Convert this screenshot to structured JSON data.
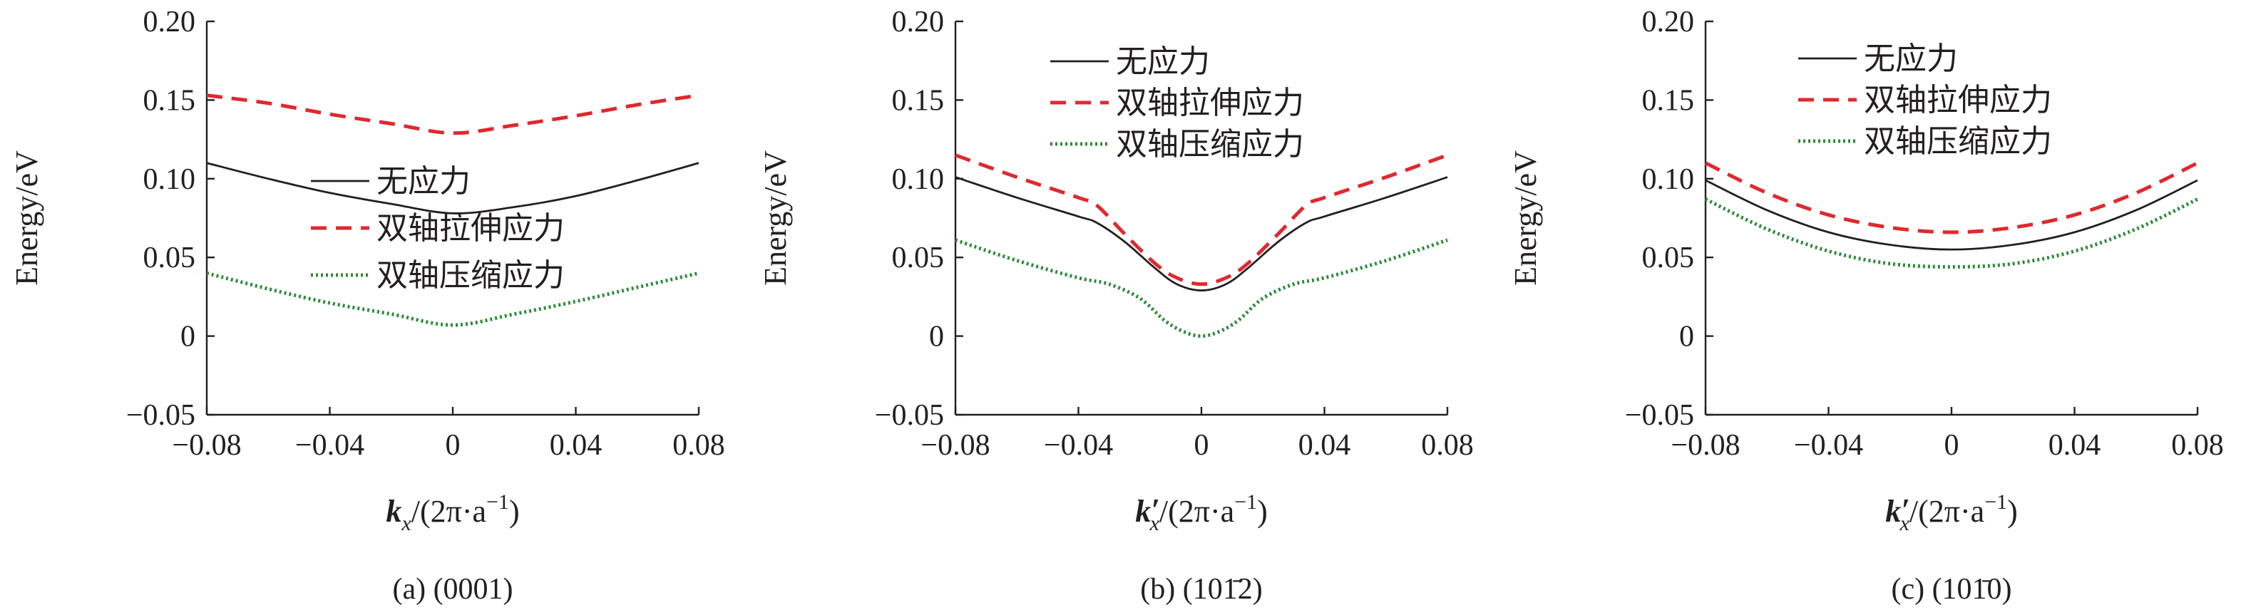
{
  "chart_data": [
    {
      "type": "line",
      "caption": "(a) (0001)",
      "xlabel": {
        "symbol": "k",
        "sub": "x",
        "prime": "",
        "rest": "/(2π·a",
        "sup": "−1",
        "close": ")"
      },
      "ylabel": "Energy/eV",
      "xlim": [
        -0.08,
        0.08
      ],
      "ylim": [
        -0.05,
        0.2
      ],
      "xticks": [
        -0.08,
        -0.04,
        0,
        0.04,
        0.08
      ],
      "xtick_labels": [
        "−0.08",
        "−0.04",
        "0",
        "0.04",
        "0.08"
      ],
      "yticks": [
        -0.05,
        0,
        0.05,
        0.1,
        0.15,
        0.2
      ],
      "ytick_labels": [
        "−0.05",
        "0",
        "0.05",
        "0.10",
        "0.15",
        "0.20"
      ],
      "legend_position": "center",
      "series": [
        {
          "name": "无应力",
          "style": "solid",
          "color": "#231f20",
          "x": [
            -0.08,
            -0.06,
            -0.04,
            -0.02,
            0,
            0.02,
            0.04,
            0.06,
            0.08
          ],
          "y": [
            0.11,
            0.1,
            0.091,
            0.084,
            0.078,
            0.082,
            0.089,
            0.099,
            0.11
          ]
        },
        {
          "name": "双轴拉伸应力",
          "style": "dashed",
          "color": "#e0282e",
          "x": [
            -0.08,
            -0.06,
            -0.04,
            -0.02,
            0,
            0.02,
            0.04,
            0.06,
            0.08
          ],
          "y": [
            0.153,
            0.148,
            0.141,
            0.135,
            0.129,
            0.134,
            0.14,
            0.147,
            0.153
          ]
        },
        {
          "name": "双轴压缩应力",
          "style": "dotted",
          "color": "#2e8b3a",
          "x": [
            -0.08,
            -0.06,
            -0.04,
            -0.02,
            0,
            0.02,
            0.04,
            0.06,
            0.08
          ],
          "y": [
            0.04,
            0.03,
            0.021,
            0.014,
            0.007,
            0.014,
            0.022,
            0.031,
            0.04
          ]
        }
      ]
    },
    {
      "type": "line",
      "caption": "(b) (101̄2)",
      "xlabel": {
        "symbol": "k",
        "sub": "x",
        "prime": "′",
        "rest": "/(2π·a",
        "sup": "−1",
        "close": ")"
      },
      "ylabel": "Energy/eV",
      "xlim": [
        -0.08,
        0.08
      ],
      "ylim": [
        -0.05,
        0.2
      ],
      "xticks": [
        -0.08,
        -0.04,
        0,
        0.04,
        0.08
      ],
      "xtick_labels": [
        "−0.08",
        "−0.04",
        "0",
        "0.04",
        "0.08"
      ],
      "yticks": [
        -0.05,
        0,
        0.05,
        0.1,
        0.15,
        0.2
      ],
      "ytick_labels": [
        "−0.05",
        "0",
        "0.05",
        "0.10",
        "0.15",
        "0.20"
      ],
      "legend_position": "top-left",
      "series": [
        {
          "name": "无应力",
          "style": "solid",
          "color": "#231f20",
          "x": [
            -0.08,
            -0.06,
            -0.04,
            -0.034,
            -0.025,
            -0.015,
            -0.008,
            0,
            0.008,
            0.015,
            0.025,
            0.034,
            0.04,
            0.06,
            0.08
          ],
          "y": [
            0.101,
            0.088,
            0.076,
            0.072,
            0.06,
            0.043,
            0.033,
            0.029,
            0.033,
            0.043,
            0.06,
            0.072,
            0.076,
            0.088,
            0.101
          ]
        },
        {
          "name": "双轴拉伸应力",
          "style": "dashed",
          "color": "#e0282e",
          "x": [
            -0.08,
            -0.06,
            -0.04,
            -0.034,
            -0.025,
            -0.015,
            -0.008,
            0,
            0.008,
            0.015,
            0.025,
            0.034,
            0.04,
            0.06,
            0.08
          ],
          "y": [
            0.115,
            0.101,
            0.088,
            0.083,
            0.065,
            0.046,
            0.037,
            0.033,
            0.037,
            0.046,
            0.065,
            0.083,
            0.088,
            0.101,
            0.115
          ]
        },
        {
          "name": "双轴压缩应力",
          "style": "dotted",
          "color": "#2e8b3a",
          "x": [
            -0.08,
            -0.06,
            -0.04,
            -0.03,
            -0.02,
            -0.012,
            -0.006,
            0,
            0.006,
            0.012,
            0.02,
            0.03,
            0.04,
            0.06,
            0.08
          ],
          "y": [
            0.061,
            0.048,
            0.037,
            0.033,
            0.024,
            0.01,
            0.003,
            0.0,
            0.003,
            0.01,
            0.024,
            0.033,
            0.037,
            0.048,
            0.061
          ]
        }
      ]
    },
    {
      "type": "line",
      "caption": "(c) (101̄0)",
      "xlabel": {
        "symbol": "k",
        "sub": "x",
        "prime": "′",
        "rest": "/(2π·a",
        "sup": "−1",
        "close": ")"
      },
      "ylabel": "Energy/eV",
      "xlim": [
        -0.08,
        0.08
      ],
      "ylim": [
        -0.05,
        0.2
      ],
      "xticks": [
        -0.08,
        -0.04,
        0,
        0.04,
        0.08
      ],
      "xtick_labels": [
        "−0.08",
        "−0.04",
        "0",
        "0.04",
        "0.08"
      ],
      "yticks": [
        -0.05,
        0,
        0.05,
        0.1,
        0.15,
        0.2
      ],
      "ytick_labels": [
        "−0.05",
        "0",
        "0.05",
        "0.10",
        "0.15",
        "0.20"
      ],
      "legend_position": "top-left",
      "series": [
        {
          "name": "无应力",
          "style": "solid",
          "color": "#231f20",
          "x": [
            -0.08,
            -0.06,
            -0.04,
            -0.02,
            0,
            0.02,
            0.04,
            0.06,
            0.08
          ],
          "y": [
            0.099,
            0.08,
            0.066,
            0.058,
            0.055,
            0.058,
            0.066,
            0.08,
            0.099
          ]
        },
        {
          "name": "双轴拉伸应力",
          "style": "dashed",
          "color": "#e0282e",
          "x": [
            -0.08,
            -0.06,
            -0.04,
            -0.02,
            0,
            0.02,
            0.04,
            0.06,
            0.08
          ],
          "y": [
            0.11,
            0.091,
            0.077,
            0.069,
            0.066,
            0.069,
            0.077,
            0.091,
            0.11
          ]
        },
        {
          "name": "双轴压缩应力",
          "style": "dotted",
          "color": "#2e8b3a",
          "x": [
            -0.08,
            -0.06,
            -0.04,
            -0.02,
            0,
            0.02,
            0.04,
            0.06,
            0.08
          ],
          "y": [
            0.087,
            0.068,
            0.054,
            0.046,
            0.044,
            0.046,
            0.054,
            0.068,
            0.087
          ]
        }
      ]
    }
  ]
}
